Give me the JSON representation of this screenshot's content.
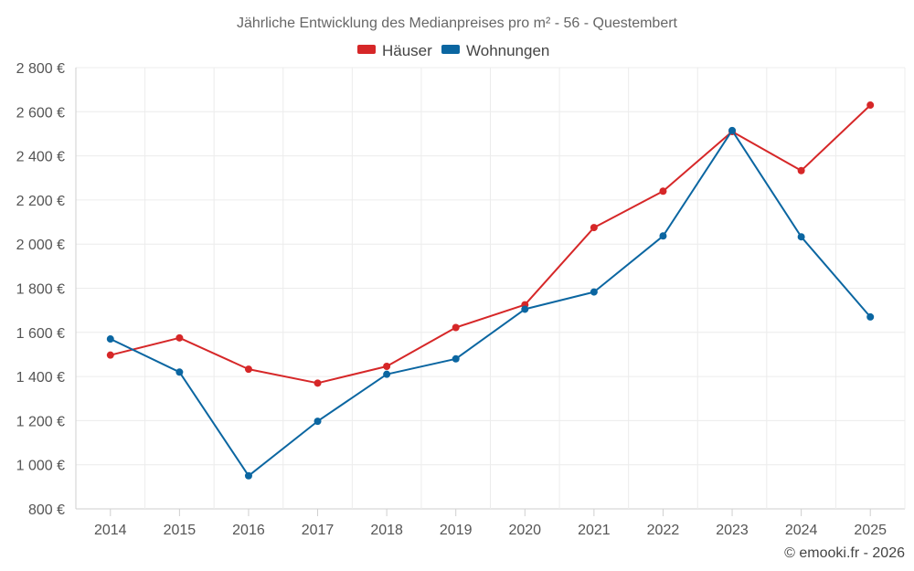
{
  "chart_data": {
    "type": "line",
    "title": "Jährliche Entwicklung des Medianpreises pro m² - 56 - Questembert",
    "categories": [
      "2014",
      "2015",
      "2016",
      "2017",
      "2018",
      "2019",
      "2020",
      "2021",
      "2022",
      "2023",
      "2024",
      "2025"
    ],
    "series": [
      {
        "name": "Häuser",
        "color": "#d62728",
        "values": [
          1497,
          1575,
          1433,
          1370,
          1446,
          1622,
          1725,
          2075,
          2240,
          2510,
          2333,
          2630
        ]
      },
      {
        "name": "Wohnungen",
        "color": "#0b66a1",
        "values": [
          1570,
          1420,
          950,
          1197,
          1410,
          1480,
          1705,
          1783,
          2037,
          2515,
          2033,
          1670
        ]
      }
    ],
    "ylim": [
      800,
      2800
    ],
    "yticks": [
      800,
      1000,
      1200,
      1400,
      1600,
      1800,
      2000,
      2200,
      2400,
      2600,
      2800
    ],
    "ytick_labels": [
      "800 €",
      "1 000 €",
      "1 200 €",
      "1 400 €",
      "1 600 €",
      "1 800 €",
      "2 000 €",
      "2 200 €",
      "2 400 €",
      "2 600 €",
      "2 800 €"
    ],
    "xlabel": "",
    "ylabel": "",
    "grid": true,
    "legend": "top-center"
  },
  "credit": "© emooki.fr - 2026"
}
